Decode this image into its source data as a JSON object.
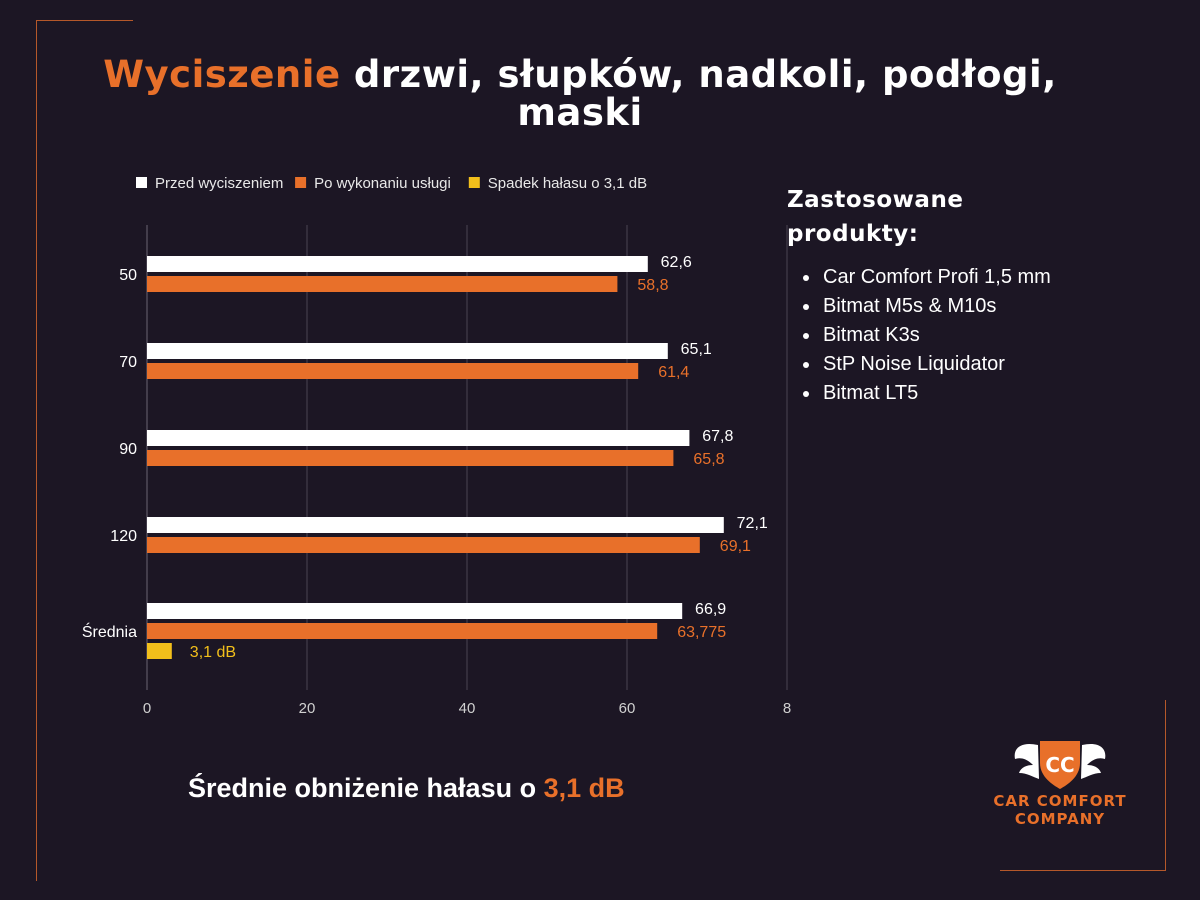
{
  "title": {
    "accent": "Wyciszenie",
    "rest": " drzwi, słupków, nadkoli, podłogi, maski"
  },
  "chart_data": {
    "type": "bar",
    "orientation": "horizontal",
    "categories": [
      "50",
      "70",
      "90",
      "120",
      "Średnia"
    ],
    "series": [
      {
        "name": "Przed wyciszeniem",
        "color": "#ffffff",
        "values": [
          62.6,
          65.1,
          67.8,
          72.1,
          66.9
        ],
        "labels": [
          "62,6",
          "65,1",
          "67,8",
          "72,1",
          "66,9"
        ]
      },
      {
        "name": "Po wykonaniu usługi",
        "color": "#e8702a",
        "values": [
          58.8,
          61.4,
          65.8,
          69.1,
          63.775
        ],
        "labels": [
          "58,8",
          "61,4",
          "65,8",
          "69,1",
          "63,775"
        ]
      },
      {
        "name": "Spadek hałasu o 3,1 dB",
        "color": "#f2bf1b",
        "values": [
          null,
          null,
          null,
          null,
          3.1
        ],
        "labels": [
          "",
          "",
          "",
          "",
          "3,1 dB"
        ]
      }
    ],
    "x_ticks": [
      "0",
      "20",
      "40",
      "60",
      "8"
    ],
    "xlim": [
      0,
      80
    ],
    "grid": true,
    "legend_position": "top"
  },
  "products": {
    "title": "Zastosowane produkty:",
    "items": [
      "Car Comfort Profi 1,5 mm",
      "Bitmat M5s & M10s",
      "Bitmat K3s",
      "StP Noise Liquidator",
      "Bitmat LT5"
    ]
  },
  "summary": {
    "text": "Średnie obniżenie hałasu o ",
    "accent": "3,1 dB"
  },
  "logo": {
    "initials": "CC",
    "line1": "CAR COMFORT",
    "line2": "COMPANY"
  }
}
